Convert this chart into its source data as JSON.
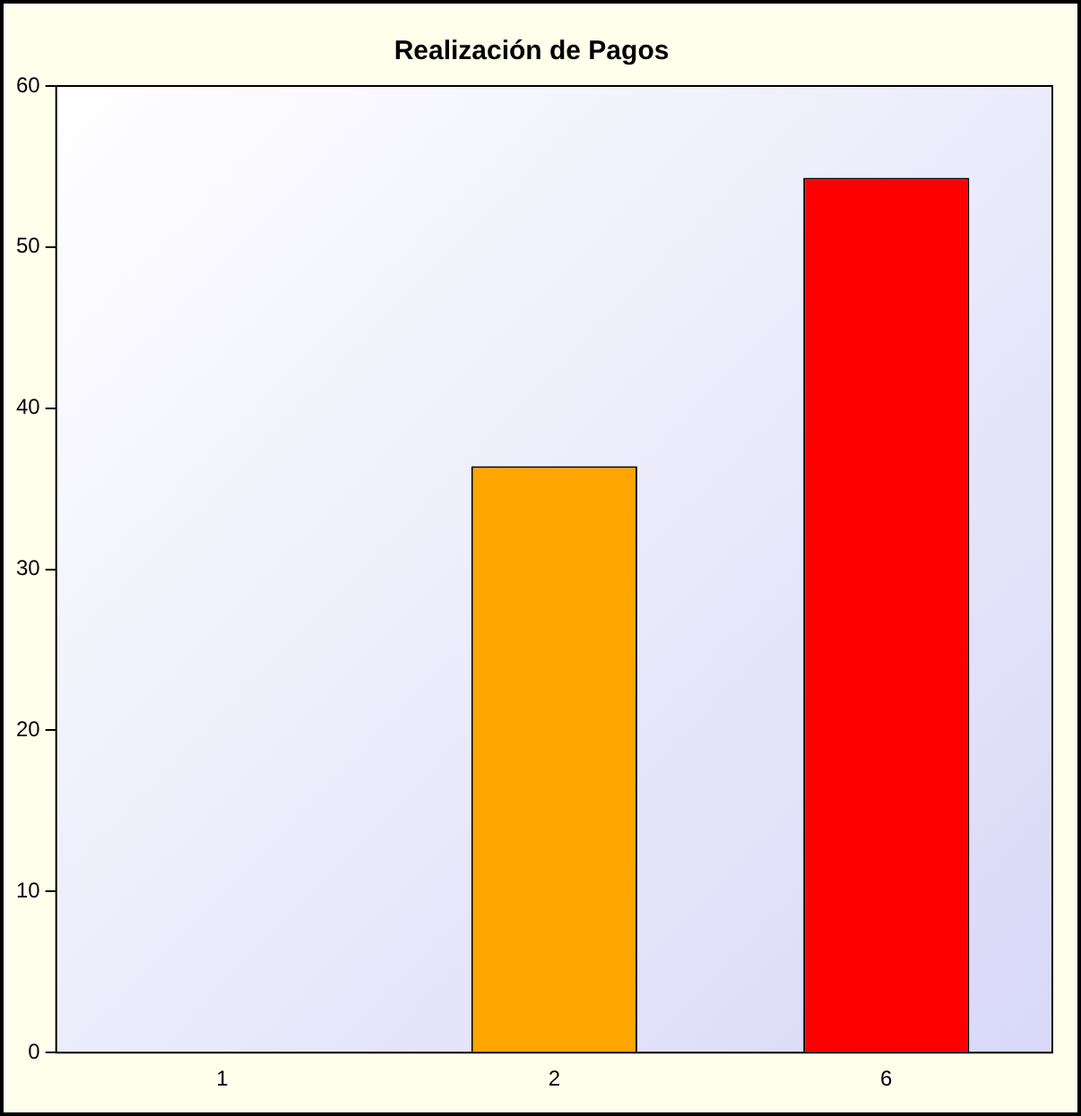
{
  "chart_data": {
    "type": "bar",
    "title": "Realización de Pagos",
    "categories": [
      "1",
      "2",
      "6"
    ],
    "values": [
      0,
      36.4,
      54.3
    ],
    "colors": [
      "#ffffff",
      "#ffa500",
      "#ff0000"
    ],
    "ylim": [
      0,
      60
    ],
    "yticks": [
      0,
      10,
      20,
      30,
      40,
      50,
      60
    ],
    "grid": false,
    "legend": false
  }
}
